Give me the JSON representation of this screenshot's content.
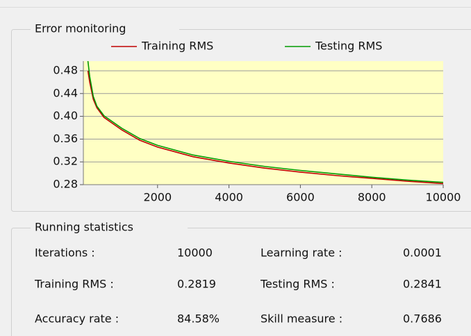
{
  "chart_data": {
    "type": "line",
    "title": "Error monitoring",
    "x": [
      50,
      100,
      200,
      300,
      500,
      1000,
      1500,
      2000,
      3000,
      4000,
      5000,
      6000,
      7000,
      8000,
      9000,
      10000
    ],
    "series": [
      {
        "name": "Training RMS",
        "color": "#c00000",
        "values": [
          0.48,
          0.46,
          0.43,
          0.415,
          0.398,
          0.376,
          0.358,
          0.346,
          0.329,
          0.318,
          0.309,
          0.302,
          0.296,
          0.291,
          0.286,
          0.2819
        ]
      },
      {
        "name": "Testing RMS",
        "color": "#009a00",
        "values": [
          0.497,
          0.47,
          0.435,
          0.418,
          0.401,
          0.379,
          0.361,
          0.349,
          0.332,
          0.321,
          0.312,
          0.305,
          0.299,
          0.293,
          0.288,
          0.2841
        ]
      }
    ],
    "xlim": [
      0,
      10000
    ],
    "xticks": [
      2000,
      4000,
      6000,
      8000,
      10000
    ],
    "ylim": [
      0.28,
      0.497
    ],
    "yticks": [
      {
        "value": 0.28,
        "label": "0.28"
      },
      {
        "value": 0.32,
        "label": "0.32"
      },
      {
        "value": 0.36,
        "label": "0.36"
      },
      {
        "value": 0.4,
        "label": "0.40"
      },
      {
        "value": 0.44,
        "label": "0.44"
      },
      {
        "value": 0.48,
        "label": "0.48"
      }
    ],
    "grid": true,
    "background": "#ffffc4"
  },
  "statistics": {
    "title": "Running statistics",
    "items": [
      {
        "label": "Iterations :",
        "value": "10000",
        "color": "#1a1aa0"
      },
      {
        "label": "Learning rate :",
        "value": "0.0001",
        "color": "#111111"
      },
      {
        "label": "Training RMS :",
        "value": "0.2819",
        "color": "#8b1a1a"
      },
      {
        "label": "Testing RMS :",
        "value": "0.2841",
        "color": "#8b1a1a"
      },
      {
        "label": "Accuracy rate :",
        "value": "84.58%",
        "color": "#c01c1c"
      },
      {
        "label": "Skill measure :",
        "value": "0.7686",
        "color": "#c01c1c"
      }
    ]
  }
}
